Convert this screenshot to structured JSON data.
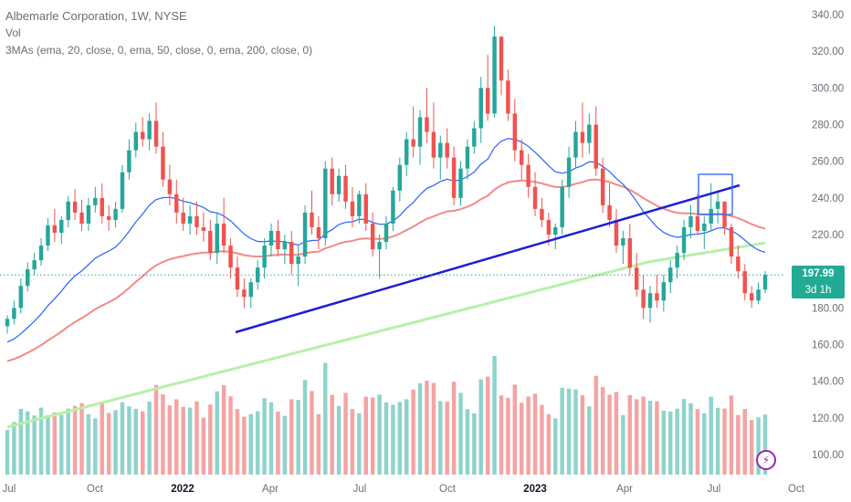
{
  "legend": {
    "title": "Albemarle Corporation, 1W, NYSE",
    "volume_label": "Vol",
    "ma_label": "3MAs (ema, 20, close, 0, ema, 50, close, 0, ema, 200, close, 0)"
  },
  "price_tag": {
    "price": "197.99",
    "countdown": "3d 1h"
  },
  "colors": {
    "up": "#26a69a",
    "down": "#ef5350",
    "vol_up": "#8fd3cb",
    "vol_down": "#f5a3a3",
    "ema20": "#2962ff",
    "ema50": "#f28a88",
    "ema200": "#b7f0a8",
    "trendline": "#1e1ed6",
    "box": "#2962ff",
    "price_line": "#22ab94"
  },
  "chart_data": {
    "type": "candlestick",
    "title": "Albemarle Corporation, 1W, NYSE",
    "y_axis": {
      "position": "right",
      "ticks": [
        340,
        320,
        300,
        280,
        260,
        240,
        220,
        200,
        180,
        160,
        140,
        120,
        100
      ],
      "ylim": [
        96,
        343
      ]
    },
    "x_axis": {
      "ticks": [
        "Jul",
        "Oct",
        "2022",
        "Apr",
        "Jul",
        "Oct",
        "2023",
        "Apr",
        "Jul",
        "Oct"
      ],
      "bold_ticks": [
        "2022",
        "2023"
      ]
    },
    "last_price": 197.99,
    "candles_approx": [
      [
        170,
        176,
        166,
        174
      ],
      [
        174,
        184,
        171,
        180
      ],
      [
        180,
        196,
        177,
        192
      ],
      [
        192,
        205,
        189,
        201
      ],
      [
        201,
        210,
        198,
        206
      ],
      [
        206,
        218,
        203,
        214
      ],
      [
        214,
        229,
        211,
        225
      ],
      [
        225,
        234,
        216,
        221
      ],
      [
        221,
        230,
        215,
        228
      ],
      [
        228,
        241,
        224,
        238
      ],
      [
        238,
        245,
        228,
        232
      ],
      [
        232,
        239,
        222,
        226
      ],
      [
        226,
        240,
        222,
        236
      ],
      [
        236,
        246,
        232,
        240
      ],
      [
        240,
        248,
        226,
        230
      ],
      [
        230,
        236,
        222,
        228
      ],
      [
        228,
        238,
        224,
        234
      ],
      [
        234,
        258,
        232,
        254
      ],
      [
        254,
        272,
        250,
        266
      ],
      [
        266,
        281,
        262,
        276
      ],
      [
        276,
        284,
        268,
        272
      ],
      [
        272,
        286,
        266,
        282
      ],
      [
        282,
        292,
        264,
        268
      ],
      [
        268,
        276,
        246,
        250
      ],
      [
        250,
        258,
        236,
        242
      ],
      [
        242,
        250,
        226,
        232
      ],
      [
        232,
        240,
        222,
        226
      ],
      [
        226,
        236,
        220,
        230
      ],
      [
        230,
        238,
        220,
        224
      ],
      [
        224,
        232,
        216,
        222
      ],
      [
        222,
        228,
        206,
        210
      ],
      [
        210,
        232,
        204,
        226
      ],
      [
        226,
        240,
        210,
        214
      ],
      [
        214,
        218,
        196,
        202
      ],
      [
        202,
        208,
        186,
        190
      ],
      [
        190,
        196,
        180,
        186
      ],
      [
        186,
        196,
        180,
        194
      ],
      [
        194,
        206,
        190,
        202
      ],
      [
        202,
        218,
        196,
        214
      ],
      [
        214,
        226,
        208,
        222
      ],
      [
        222,
        228,
        208,
        212
      ],
      [
        212,
        220,
        204,
        216
      ],
      [
        216,
        222,
        198,
        204
      ],
      [
        204,
        214,
        192,
        208
      ],
      [
        208,
        236,
        204,
        232
      ],
      [
        232,
        244,
        220,
        224
      ],
      [
        224,
        230,
        212,
        218
      ],
      [
        218,
        260,
        214,
        256
      ],
      [
        256,
        262,
        236,
        242
      ],
      [
        242,
        256,
        238,
        252
      ],
      [
        252,
        258,
        234,
        238
      ],
      [
        238,
        246,
        224,
        230
      ],
      [
        230,
        244,
        226,
        242
      ],
      [
        242,
        248,
        222,
        226
      ],
      [
        226,
        232,
        208,
        212
      ],
      [
        212,
        220,
        196,
        216
      ],
      [
        216,
        230,
        212,
        226
      ],
      [
        226,
        246,
        222,
        244
      ],
      [
        244,
        262,
        238,
        258
      ],
      [
        258,
        276,
        252,
        272
      ],
      [
        272,
        290,
        262,
        268
      ],
      [
        268,
        288,
        258,
        284
      ],
      [
        284,
        300,
        270,
        276
      ],
      [
        276,
        292,
        256,
        262
      ],
      [
        262,
        274,
        250,
        270
      ],
      [
        270,
        278,
        256,
        262
      ],
      [
        262,
        268,
        236,
        240
      ],
      [
        240,
        260,
        236,
        256
      ],
      [
        256,
        272,
        250,
        268
      ],
      [
        268,
        282,
        264,
        278
      ],
      [
        278,
        306,
        270,
        300
      ],
      [
        300,
        318,
        282,
        286
      ],
      [
        286,
        334,
        284,
        328
      ],
      [
        328,
        318,
        296,
        304
      ],
      [
        304,
        310,
        282,
        286
      ],
      [
        286,
        294,
        260,
        266
      ],
      [
        266,
        272,
        250,
        258
      ],
      [
        258,
        264,
        240,
        246
      ],
      [
        246,
        254,
        230,
        234
      ],
      [
        234,
        240,
        224,
        228
      ],
      [
        228,
        232,
        214,
        220
      ],
      [
        220,
        226,
        212,
        224
      ],
      [
        224,
        250,
        220,
        246
      ],
      [
        246,
        268,
        240,
        262
      ],
      [
        262,
        282,
        256,
        276
      ],
      [
        276,
        292,
        262,
        270
      ],
      [
        270,
        286,
        264,
        280
      ],
      [
        280,
        290,
        252,
        256
      ],
      [
        256,
        262,
        232,
        236
      ],
      [
        236,
        248,
        224,
        228
      ],
      [
        228,
        234,
        210,
        214
      ],
      [
        214,
        222,
        204,
        218
      ],
      [
        218,
        226,
        198,
        202
      ],
      [
        202,
        210,
        186,
        190
      ],
      [
        190,
        198,
        174,
        180
      ],
      [
        180,
        192,
        172,
        188
      ],
      [
        188,
        198,
        180,
        184
      ],
      [
        184,
        198,
        178,
        194
      ],
      [
        194,
        206,
        188,
        202
      ],
      [
        202,
        214,
        196,
        210
      ],
      [
        210,
        228,
        206,
        224
      ],
      [
        224,
        236,
        218,
        230
      ],
      [
        230,
        242,
        220,
        222
      ],
      [
        222,
        230,
        212,
        226
      ],
      [
        226,
        248,
        222,
        234
      ],
      [
        234,
        244,
        226,
        238
      ],
      [
        238,
        236,
        220,
        224
      ],
      [
        224,
        226,
        204,
        208
      ],
      [
        208,
        214,
        196,
        200
      ],
      [
        200,
        204,
        184,
        188
      ],
      [
        188,
        192,
        180,
        184
      ],
      [
        184,
        194,
        182,
        190
      ],
      [
        190,
        200,
        188,
        198
      ]
    ],
    "series": [
      {
        "name": "ema 20"
      },
      {
        "name": "ema 50"
      },
      {
        "name": "ema 200"
      },
      {
        "name": "Vol"
      }
    ]
  }
}
